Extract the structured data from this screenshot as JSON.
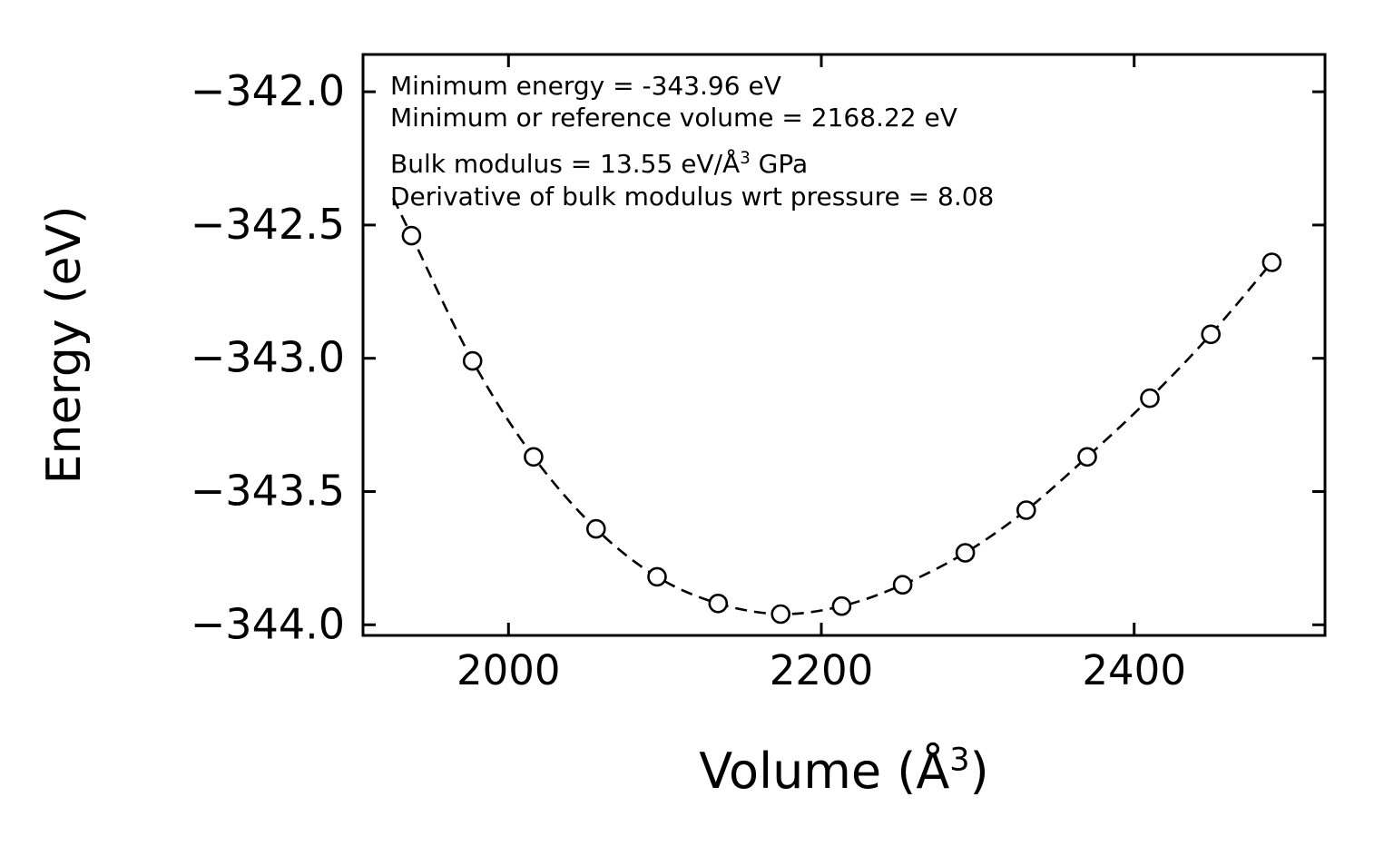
{
  "page": {
    "background": "#ffffff",
    "ink_color": "#000000"
  },
  "chart_data": {
    "type": "scatter",
    "title": "",
    "xlabel_parts": [
      {
        "text": "Volume (Å"
      },
      {
        "text": "3",
        "sup": true
      },
      {
        "text": ")"
      }
    ],
    "ylabel": "Energy (eV)",
    "xlim": [
      1907,
      2522
    ],
    "ylim": [
      -344.04,
      -341.86
    ],
    "grid": false,
    "legend": "none",
    "x_ticks": [
      {
        "value": 2000,
        "label": "2000"
      },
      {
        "value": 2200,
        "label": "2200"
      },
      {
        "value": 2400,
        "label": "2400"
      }
    ],
    "y_ticks": [
      {
        "value": -342.0,
        "label": "−342.0"
      },
      {
        "value": -342.5,
        "label": "−342.5"
      },
      {
        "value": -343.0,
        "label": "−343.0"
      },
      {
        "value": -343.5,
        "label": "−343.5"
      },
      {
        "value": -344.0,
        "label": "−344.0"
      }
    ],
    "series": [
      {
        "name": "energy-volume-fit",
        "marker": "open-circle",
        "line_style": "dashed",
        "color": "#000000",
        "x": [
          1938,
          1977,
          2016,
          2056,
          2095,
          2134,
          2174,
          2213,
          2252,
          2292,
          2331,
          2370,
          2410,
          2449,
          2488
        ],
        "y": [
          -342.54,
          -343.01,
          -343.37,
          -343.64,
          -343.82,
          -343.92,
          -343.96,
          -343.93,
          -343.85,
          -343.73,
          -343.57,
          -343.37,
          -343.15,
          -342.91,
          -342.64
        ]
      }
    ],
    "annotations": [
      {
        "parts": [
          {
            "text": "Minimum energy = -343.96 eV"
          }
        ]
      },
      {
        "parts": [
          {
            "text": "Minimum or reference volume = 2168.22 eV"
          }
        ]
      },
      {
        "parts": [
          {
            "text": "Bulk modulus = 13.55 eV/Å"
          },
          {
            "text": "3",
            "sup": true
          },
          {
            "text": " GPa"
          }
        ]
      },
      {
        "parts": [
          {
            "text": "Derivative of bulk modulus wrt pressure = 8.08"
          }
        ]
      }
    ],
    "fit_parameters": {
      "minimum_energy_eV": -343.96,
      "reference_volume": 2168.22,
      "bulk_modulus": 13.55,
      "bulk_modulus_pressure_derivative": 8.08
    }
  }
}
